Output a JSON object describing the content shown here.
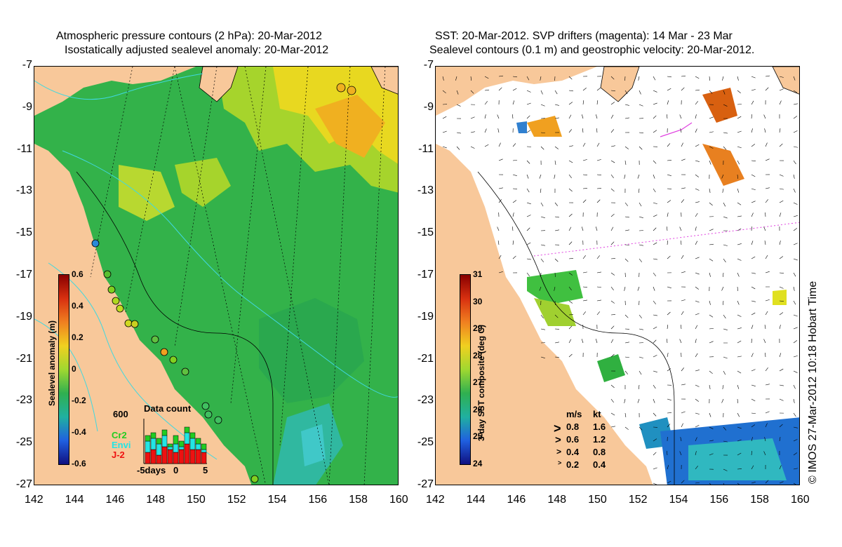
{
  "left_panel": {
    "title_line1": "Atmospheric pressure contours (2 hPa): 20-Mar-2012",
    "title_line2": "Isostatically adjusted sealevel anomaly: 20-Mar-2012",
    "colorbar": {
      "label": "Sealevel anomaly (m)",
      "ticks": [
        "0.6",
        "0.4",
        "0.2",
        "0",
        "-0.2",
        "-0.4",
        "-0.6"
      ]
    },
    "data_count": {
      "title": "Data count",
      "max_label": "600",
      "x_labels": [
        "-5days",
        "0",
        "5"
      ],
      "series": [
        {
          "name": "Cr2",
          "color": "#22cc22"
        },
        {
          "name": "Envi",
          "color": "#22e5e5"
        },
        {
          "name": "J-2",
          "color": "#ee1111"
        }
      ]
    }
  },
  "right_panel": {
    "title_line1": "SST: 20-Mar-2012. SVP drifters (magenta): 14 Mar - 23 Mar",
    "title_line2": "Sealevel contours (0.1 m) and geostrophic velocity: 20-Mar-2012.",
    "colorbar": {
      "label": "3-day SST composite (deg C)",
      "ticks": [
        "31",
        "30",
        "29",
        "28",
        "27",
        "26",
        "25",
        "24"
      ]
    },
    "speed_legend": {
      "header_ms": "m/s",
      "header_kt": "kt",
      "rows": [
        {
          "ms": "0.8",
          "kt": "1.6"
        },
        {
          "ms": "0.6",
          "kt": "1.2"
        },
        {
          "ms": "0.4",
          "kt": "0.8"
        },
        {
          "ms": "0.2",
          "kt": "0.4"
        }
      ]
    }
  },
  "axes": {
    "lon_labels": [
      "142",
      "144",
      "146",
      "148",
      "150",
      "152",
      "154",
      "156",
      "158",
      "160"
    ],
    "lat_labels": [
      "-7",
      "-9",
      "-11",
      "-13",
      "-15",
      "-17",
      "-19",
      "-21",
      "-23",
      "-25",
      "-27"
    ]
  },
  "footer": "© IMOS 27-Mar-2012 10:18 Hobart Time",
  "colors": {
    "land": "#f8c89a",
    "ocean_low": "#22aa44",
    "ocean_high": "#f0c020",
    "contour": "#40d8e0",
    "drifter": "#e040e0"
  }
}
